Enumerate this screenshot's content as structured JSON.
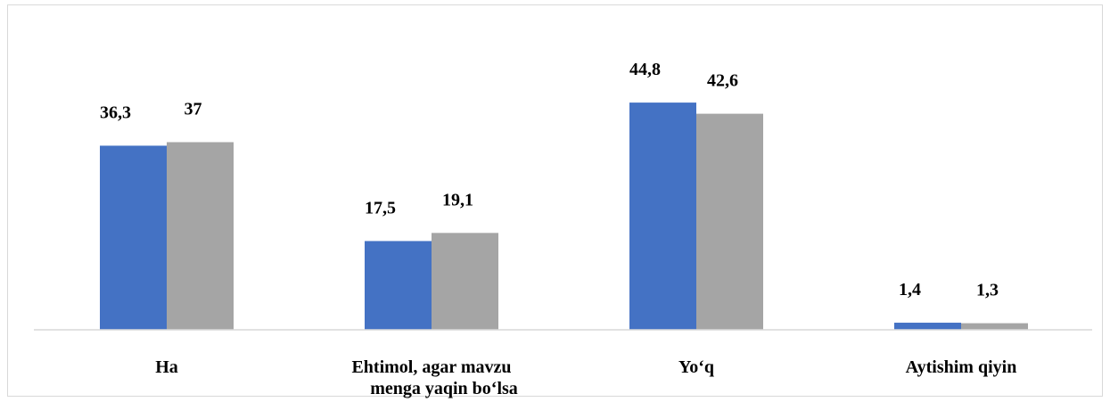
{
  "chart_data": {
    "type": "bar",
    "categories": [
      [
        "Ha"
      ],
      [
        "Ehtimol, agar mavzu",
        "menga yaqin bo‘lsa"
      ],
      [
        "Yo‘q"
      ],
      [
        "Aytishim qiyin"
      ]
    ],
    "series": [
      {
        "color": "#4472c4",
        "values": [
          36.3,
          17.5,
          44.8,
          1.4
        ],
        "labels": [
          "36,3",
          "17,5",
          "44,8",
          "1,4"
        ]
      },
      {
        "color": "#a5a5a5",
        "values": [
          37,
          19.1,
          42.6,
          1.3
        ],
        "labels": [
          "37",
          "19,1",
          "42,6",
          "1,3"
        ]
      }
    ],
    "ylim": [
      0,
      50
    ],
    "grid": false,
    "legend": "none",
    "title": "",
    "xlabel": "",
    "ylabel": ""
  }
}
